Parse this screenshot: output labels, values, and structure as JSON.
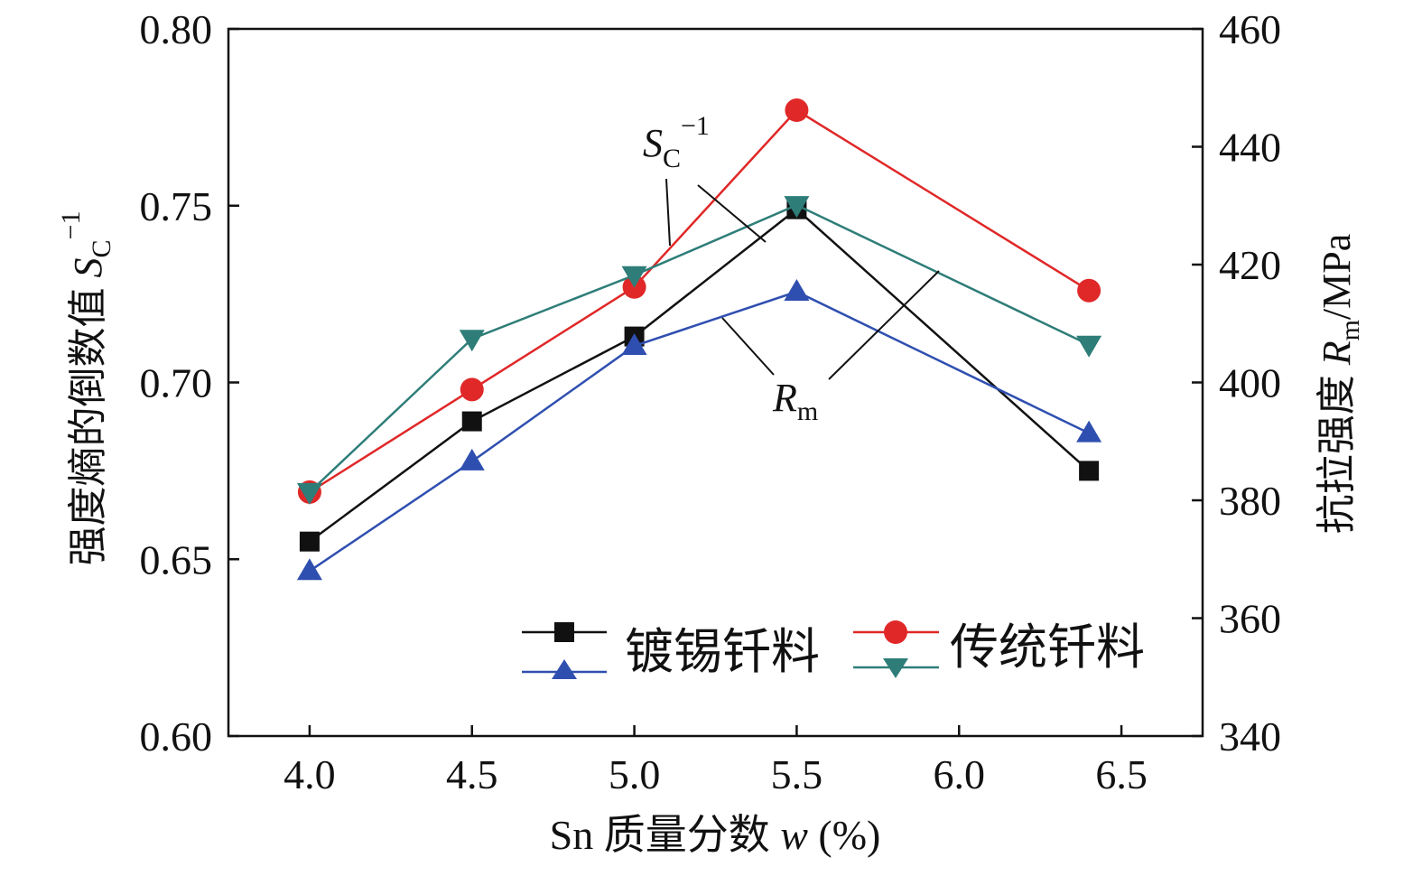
{
  "chart_data": {
    "type": "line",
    "x_label": "Sn 质量分数 w (%)",
    "y_left_label": "强度熵的倒数值 S_C^-1",
    "y_right_label": "抗拉强度 R_m/MPa",
    "xlim": [
      3.75,
      6.75
    ],
    "ylim_left": [
      0.6,
      0.8
    ],
    "ylim_right": [
      340,
      460
    ],
    "x_ticks": [
      "4.0",
      "4.5",
      "5.0",
      "5.5",
      "6.0",
      "6.5"
    ],
    "y_left_ticks": [
      "0.60",
      "0.65",
      "0.70",
      "0.75",
      "0.80"
    ],
    "y_right_ticks": [
      "340",
      "360",
      "380",
      "400",
      "420",
      "440",
      "460"
    ],
    "x": [
      4.0,
      4.5,
      5.0,
      5.5,
      6.4
    ],
    "series": [
      {
        "name": "镀锡钎料 S_C^-1",
        "axis": "left",
        "marker": "square",
        "color": "#111111",
        "values": [
          0.655,
          0.689,
          0.713,
          0.749,
          0.675
        ]
      },
      {
        "name": "镀锡钎料 R_m",
        "axis": "right",
        "marker": "triangle-up",
        "color": "#2f4fb0",
        "values": [
          368,
          386.6,
          406.2,
          415.4,
          391.4
        ]
      },
      {
        "name": "传统钎料 S_C^-1",
        "axis": "left",
        "marker": "circle",
        "color": "#e02828",
        "values": [
          0.669,
          0.698,
          0.727,
          0.777,
          0.726
        ]
      },
      {
        "name": "传统钎料 R_m",
        "axis": "right",
        "marker": "triangle-down",
        "color": "#2e7d78",
        "values": [
          381.4,
          407.4,
          418.2,
          430.1,
          406.4
        ]
      }
    ],
    "legend": {
      "placement": "bottom-right",
      "entries": [
        "镀锡钎料",
        "传统钎料"
      ]
    },
    "annotations": {
      "sc_main": "S",
      "sc_sub": "C",
      "sc_sup": "−1",
      "rm_main": "R",
      "rm_sub": "m"
    },
    "axis_label_parts": {
      "left_main": "强度熵的倒数值 ",
      "left_var": "S",
      "left_sub": "C",
      "left_sup": "−1",
      "right_main": "抗拉强度 ",
      "right_var": "R",
      "right_sub": "m",
      "right_unit": "/MPa",
      "x_main": "Sn 质量分数 ",
      "x_var": "w",
      "x_unit": " (%)"
    },
    "grid": false
  }
}
